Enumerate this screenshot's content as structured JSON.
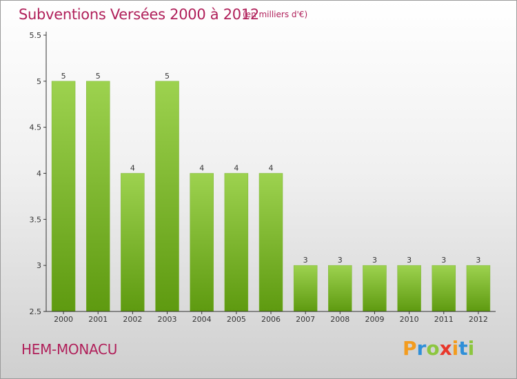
{
  "header": {
    "title": "Subventions Versées 2000 à 2012",
    "subtitle": "(en milliers d'€)"
  },
  "footer": {
    "commune": "HEM-MONACU",
    "logo_text": "Proxiti",
    "logo_colors": [
      "#f39c1f",
      "#2f8fd8",
      "#8cc63f",
      "#e8372b",
      "#f39c1f",
      "#2f8fd8",
      "#8cc63f"
    ]
  },
  "colors": {
    "title": "#b0205a",
    "bar_top": "#9dd24f",
    "bar_bottom": "#5e9a10",
    "axis": "#333333"
  },
  "chart_data": {
    "type": "bar",
    "title": "Subventions Versées 2000 à 2012",
    "subtitle": "(en milliers d'€)",
    "xlabel": "",
    "ylabel": "",
    "categories": [
      "2000",
      "2001",
      "2002",
      "2003",
      "2004",
      "2005",
      "2006",
      "2007",
      "2008",
      "2009",
      "2010",
      "2011",
      "2012"
    ],
    "values": [
      5,
      5,
      4,
      5,
      4,
      4,
      4,
      3,
      3,
      3,
      3,
      3,
      3
    ],
    "data_labels": [
      "5",
      "5",
      "4",
      "5",
      "4",
      "4",
      "4",
      "3",
      "3",
      "3",
      "3",
      "3",
      "3"
    ],
    "ylim": [
      2.5,
      5.5
    ],
    "yticks": [
      2.5,
      3,
      3.5,
      4,
      4.5,
      5,
      5.5
    ],
    "ytick_labels": [
      "2.5",
      "3",
      "3.5",
      "4",
      "4.5",
      "5",
      "5.5"
    ],
    "grid": false,
    "legend": "none"
  }
}
